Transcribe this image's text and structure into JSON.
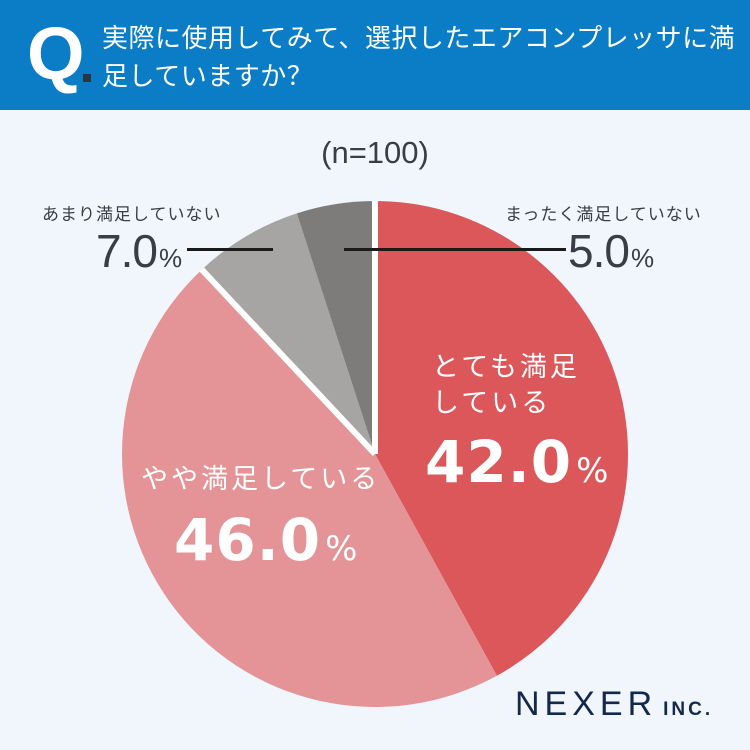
{
  "header": {
    "q_mark": "Q",
    "question": "実際に使用してみて、選択したエアコンプレッサに満足していますか？",
    "background_color": "#0b7cc6"
  },
  "sample_size": "(n=100)",
  "labels": {
    "very_satisfied": {
      "text_line1": "とても満足",
      "text_line2": "している",
      "value": "42.0",
      "unit": "%"
    },
    "somewhat_satisfied": {
      "text": "やや満足している",
      "value": "46.0",
      "unit": "%"
    },
    "not_very_satisfied": {
      "text": "あまり満足していない",
      "value": "7.0",
      "unit": "%"
    },
    "not_at_all_satisfied": {
      "text": "まったく満足していない",
      "value": "5.0",
      "unit": "%"
    }
  },
  "brand": {
    "name": "NEXER",
    "suffix": "INC."
  },
  "chart_data": {
    "type": "pie",
    "title": "実際に使用してみて、選択したエアコンプレッサに満足していますか？",
    "subtitle": "(n=100)",
    "start_angle_deg": 0,
    "direction": "clockwise",
    "categories": [
      "とても満足している",
      "やや満足している",
      "あまり満足していない",
      "まったく満足していない"
    ],
    "values": [
      42.0,
      46.0,
      7.0,
      5.0
    ],
    "unit": "%",
    "colors": [
      "#dc5759",
      "#e49496",
      "#a6a5a4",
      "#7d7c7b"
    ],
    "separator_color": "#ffffff"
  }
}
